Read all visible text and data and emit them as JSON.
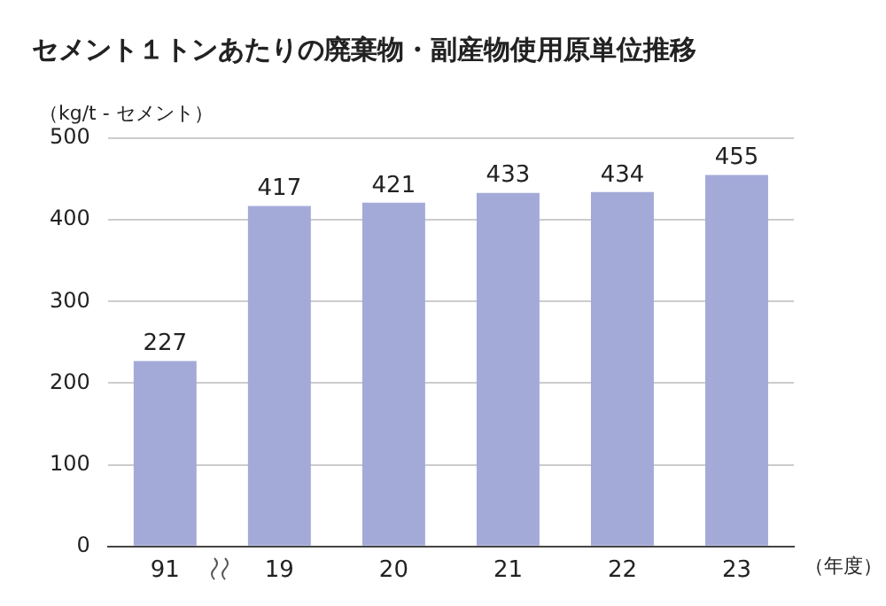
{
  "chart_data": {
    "type": "bar",
    "title": "セメント１トンあたりの廃棄物・副産物使用原単位推移",
    "ylabel": "（kg/t - セメント）",
    "xlabel": "（年度）",
    "categories": [
      "91",
      "19",
      "20",
      "21",
      "22",
      "23"
    ],
    "values": [
      227,
      417,
      421,
      433,
      434,
      455
    ],
    "color": "#a4aad8",
    "ylim": [
      0,
      500
    ],
    "yticks": [
      0,
      100,
      200,
      300,
      400,
      500
    ],
    "grid": "y",
    "data_labels": true,
    "legend": false
  }
}
